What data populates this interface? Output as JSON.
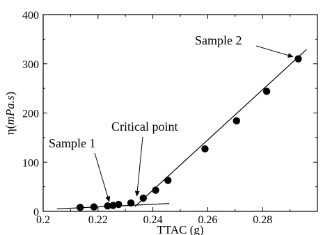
{
  "chart_data": {
    "type": "scatter",
    "title": "",
    "xlabel": "TTAC (g)",
    "ylabel": {
      "prefix": "η(",
      "unit": "mPa.s",
      "suffix": ")"
    },
    "xlim": [
      0.2,
      0.3
    ],
    "ylim": [
      0,
      400
    ],
    "xticks": [
      "0.2",
      "0.22",
      "0.24",
      "0.26",
      "0.28"
    ],
    "yticks": [
      "0",
      "100",
      "200",
      "300",
      "400"
    ],
    "grid": false,
    "legend": "none",
    "series": [
      {
        "x": [
          0.2135,
          0.2185,
          0.2235,
          0.2255,
          0.2275,
          0.232,
          0.2365,
          0.241,
          0.2455,
          0.259,
          0.2705,
          0.2815,
          0.293
        ],
        "y": [
          8,
          9,
          11,
          12,
          14,
          17,
          27,
          43,
          63,
          127,
          184,
          244,
          310
        ]
      }
    ],
    "fit_lines": [
      {
        "x": [
          0.205,
          0.246
        ],
        "y": [
          5,
          16
        ]
      },
      {
        "x": [
          0.2335,
          0.296
        ],
        "y": [
          10,
          329
        ]
      }
    ],
    "annotations": [
      {
        "text": "Sample 1",
        "target": [
          0.2245,
          12
        ]
      },
      {
        "text": "Critical point",
        "target": [
          0.234,
          23
        ]
      },
      {
        "text": "Sample 2",
        "target": [
          0.2925,
          312
        ]
      }
    ]
  }
}
